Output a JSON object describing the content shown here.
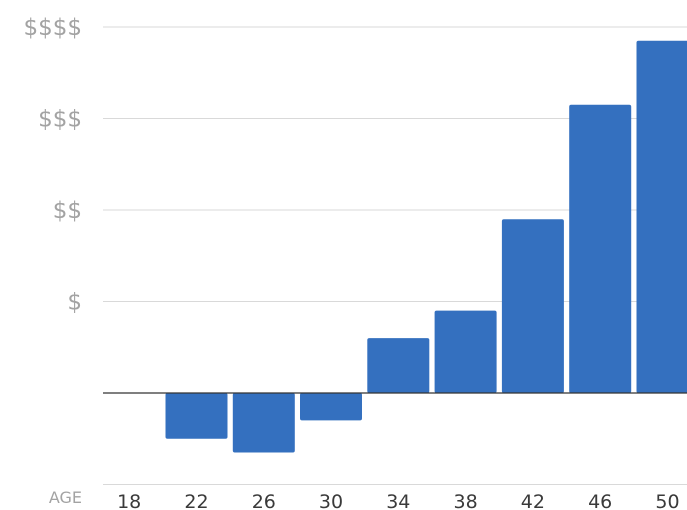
{
  "chart_data": {
    "type": "bar",
    "xlabel": "AGE",
    "ylabel": "",
    "title": "",
    "categories": [
      "18",
      "22",
      "26",
      "30",
      "34",
      "38",
      "42",
      "46",
      "50"
    ],
    "values": [
      0,
      -0.5,
      -0.65,
      -0.3,
      0.6,
      0.9,
      1.9,
      3.15,
      3.85
    ],
    "ylim": [
      -1,
      4
    ],
    "y_ticks": [
      {
        "value": 1,
        "label": "$"
      },
      {
        "value": 2,
        "label": "$$"
      },
      {
        "value": 3,
        "label": "$$$"
      },
      {
        "value": 4,
        "label": "$$$$"
      }
    ],
    "grid": true,
    "legend": "none",
    "colors": {
      "bar": "#3470bf",
      "grid": "#d9d9d9",
      "zero_line": "#333333",
      "axis_text": "#a3a3a3",
      "category_text": "#3a3a3a"
    }
  }
}
